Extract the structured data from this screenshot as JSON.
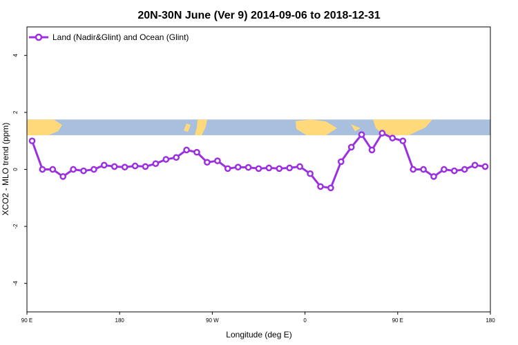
{
  "chart_data": {
    "type": "line",
    "title": "20N-30N June (Ver 9)   2014-09-06 to 2018-12-31",
    "xlabel": "Longitude (deg E)",
    "ylabel": "XCO2 - MLO trend (ppm)",
    "xlim": [
      90,
      540
    ],
    "ylim": [
      -5,
      5
    ],
    "x_ticks": [
      {
        "value": 90,
        "label": "90 E"
      },
      {
        "value": 180,
        "label": "180"
      },
      {
        "value": 270,
        "label": "90 W"
      },
      {
        "value": 360,
        "label": "0"
      },
      {
        "value": 450,
        "label": "90 E"
      },
      {
        "value": 540,
        "label": "180"
      }
    ],
    "y_ticks": [
      {
        "value": -4,
        "label": "-4"
      },
      {
        "value": -2,
        "label": "-2"
      },
      {
        "value": 0,
        "label": "0"
      },
      {
        "value": 2,
        "label": "2"
      },
      {
        "value": 4,
        "label": "4"
      }
    ],
    "legend_position": "top-left",
    "grid": false,
    "background_map": {
      "type": "world-land-ocean-strip",
      "y_range": [
        1.2,
        1.75
      ],
      "land_color": "#ffd97a",
      "ocean_color": "#a8bfdd"
    },
    "series": [
      {
        "name": "Land (Nadir&Glint) and Ocean (Glint)",
        "color": "#9b30e0",
        "x": [
          95,
          105,
          115,
          125,
          135,
          145,
          155,
          165,
          175,
          185,
          195,
          205,
          215,
          225,
          235,
          245,
          255,
          265,
          275,
          285,
          295,
          305,
          315,
          325,
          335,
          345,
          355,
          365,
          375,
          385,
          395,
          405,
          415,
          425,
          435,
          445,
          455,
          465,
          475,
          485,
          495,
          505,
          515,
          525,
          535
        ],
        "y": [
          1.0,
          0.0,
          0.0,
          -0.25,
          0.0,
          -0.05,
          0.0,
          0.15,
          0.1,
          0.08,
          0.12,
          0.1,
          0.2,
          0.35,
          0.42,
          0.68,
          0.6,
          0.25,
          0.3,
          0.03,
          0.08,
          0.07,
          0.03,
          0.05,
          0.03,
          0.05,
          0.1,
          -0.15,
          -0.6,
          -0.65,
          0.27,
          0.78,
          1.22,
          0.68,
          1.27,
          1.1,
          1.0,
          0.0,
          0.0,
          -0.25,
          0.0,
          -0.05,
          0.0,
          0.15,
          0.1
        ]
      }
    ]
  }
}
